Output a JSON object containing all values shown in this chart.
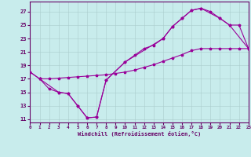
{
  "xlabel": "Windchill (Refroidissement éolien,°C)",
  "bg_color": "#c8ecec",
  "line_color": "#990099",
  "xlim": [
    0,
    23
  ],
  "ylim": [
    11,
    28
  ],
  "xticks": [
    0,
    1,
    2,
    3,
    4,
    5,
    6,
    7,
    8,
    9,
    10,
    11,
    12,
    13,
    14,
    15,
    16,
    17,
    18,
    19,
    20,
    21,
    22,
    23
  ],
  "yticks": [
    11,
    13,
    15,
    17,
    19,
    21,
    23,
    25,
    27
  ],
  "line1_x": [
    0,
    1,
    2,
    3,
    4,
    5,
    6,
    7,
    8,
    10,
    11,
    12,
    13,
    14,
    15,
    16,
    17,
    18,
    19,
    20,
    21,
    23
  ],
  "line1_y": [
    18.0,
    17.0,
    15.5,
    15.0,
    14.8,
    13.0,
    11.2,
    11.3,
    16.8,
    19.5,
    20.5,
    21.5,
    22.0,
    23.0,
    24.8,
    26.0,
    27.2,
    27.5,
    27.0,
    26.0,
    25.0,
    21.5
  ],
  "line2_x": [
    1,
    3,
    4,
    5,
    6,
    7,
    8,
    10,
    14,
    15,
    16,
    17,
    18,
    20,
    21,
    22,
    23
  ],
  "line2_y": [
    17.0,
    15.0,
    14.8,
    13.0,
    11.2,
    11.3,
    16.8,
    19.5,
    23.0,
    24.8,
    26.0,
    27.2,
    27.5,
    26.0,
    25.0,
    25.0,
    21.5
  ],
  "line3_x": [
    0,
    1,
    2,
    3,
    4,
    5,
    6,
    7,
    8,
    9,
    10,
    11,
    12,
    13,
    14,
    15,
    16,
    17,
    18,
    19,
    20,
    21,
    22,
    23
  ],
  "line3_y": [
    18.0,
    17.0,
    17.0,
    17.1,
    17.2,
    17.3,
    17.4,
    17.5,
    17.6,
    17.8,
    18.0,
    18.3,
    18.7,
    19.1,
    19.6,
    20.1,
    20.6,
    21.2,
    21.5,
    21.5,
    21.5,
    21.5,
    21.5,
    21.5
  ]
}
